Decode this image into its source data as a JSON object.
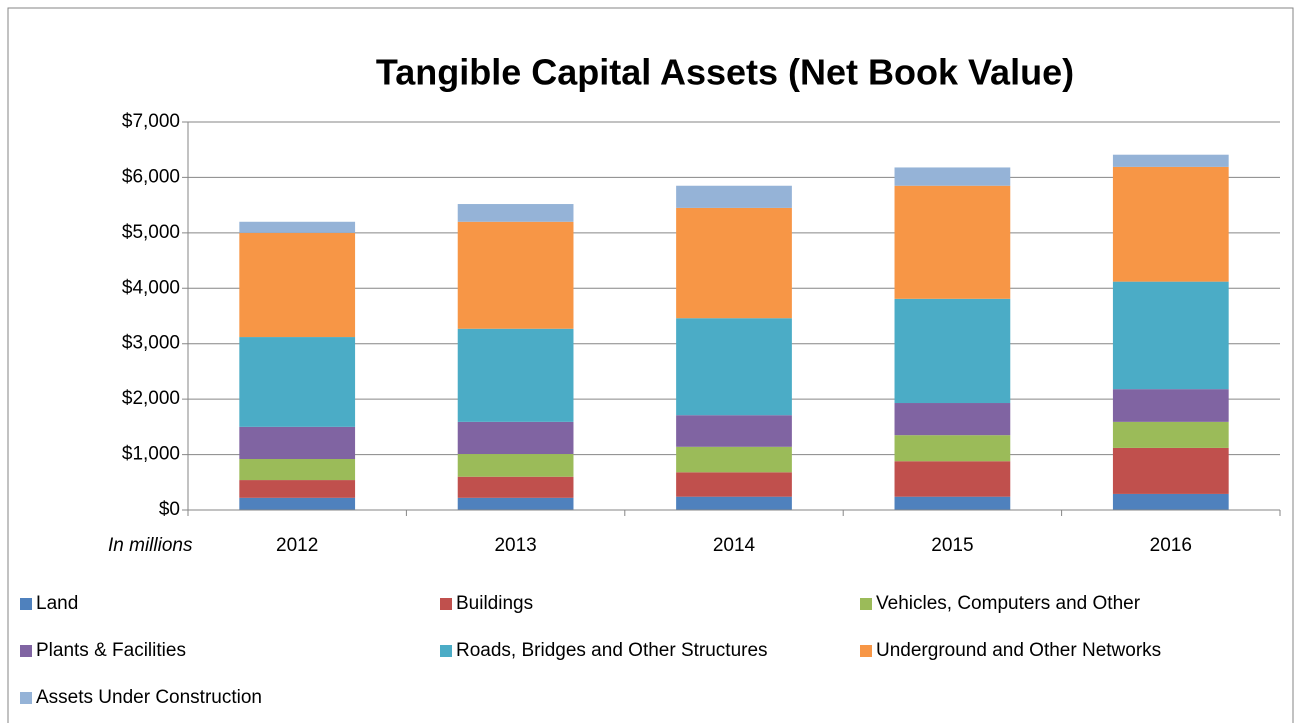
{
  "chart_data": {
    "type": "bar",
    "stacked": true,
    "title": "Tangible Capital Assets (Net Book Value)",
    "annotation": "In millions",
    "categories": [
      "2012",
      "2013",
      "2014",
      "2015",
      "2016"
    ],
    "series": [
      {
        "name": "Land",
        "color": "#4f81bd",
        "values": [
          220,
          220,
          240,
          240,
          290
        ]
      },
      {
        "name": "Buildings",
        "color": "#c0504d",
        "values": [
          320,
          380,
          440,
          640,
          830
        ]
      },
      {
        "name": "Vehicles, Computers and Other",
        "color": "#9bbb59",
        "values": [
          380,
          410,
          460,
          470,
          470
        ]
      },
      {
        "name": "Plants & Facilities",
        "color": "#8064a2",
        "values": [
          580,
          580,
          570,
          580,
          590
        ]
      },
      {
        "name": "Roads, Bridges and Other Structures",
        "color": "#4bacc6",
        "values": [
          1620,
          1680,
          1750,
          1880,
          1940
        ]
      },
      {
        "name": "Underground and Other Networks",
        "color": "#f79646",
        "values": [
          1880,
          1930,
          1990,
          2040,
          2070
        ]
      },
      {
        "name": "Assets Under Construction",
        "color": "#95b3d7",
        "values": [
          200,
          320,
          400,
          330,
          220
        ]
      }
    ],
    "ylim": [
      0,
      7000
    ],
    "yticks": [
      {
        "value": 0,
        "label": "$0"
      },
      {
        "value": 1000,
        "label": "$1,000"
      },
      {
        "value": 2000,
        "label": "$2,000"
      },
      {
        "value": 3000,
        "label": "$3,000"
      },
      {
        "value": 4000,
        "label": "$4,000"
      },
      {
        "value": 5000,
        "label": "$5,000"
      },
      {
        "value": 6000,
        "label": "$6,000"
      },
      {
        "value": 7000,
        "label": "$7,000"
      }
    ],
    "grid": true,
    "legend": "bottom"
  }
}
